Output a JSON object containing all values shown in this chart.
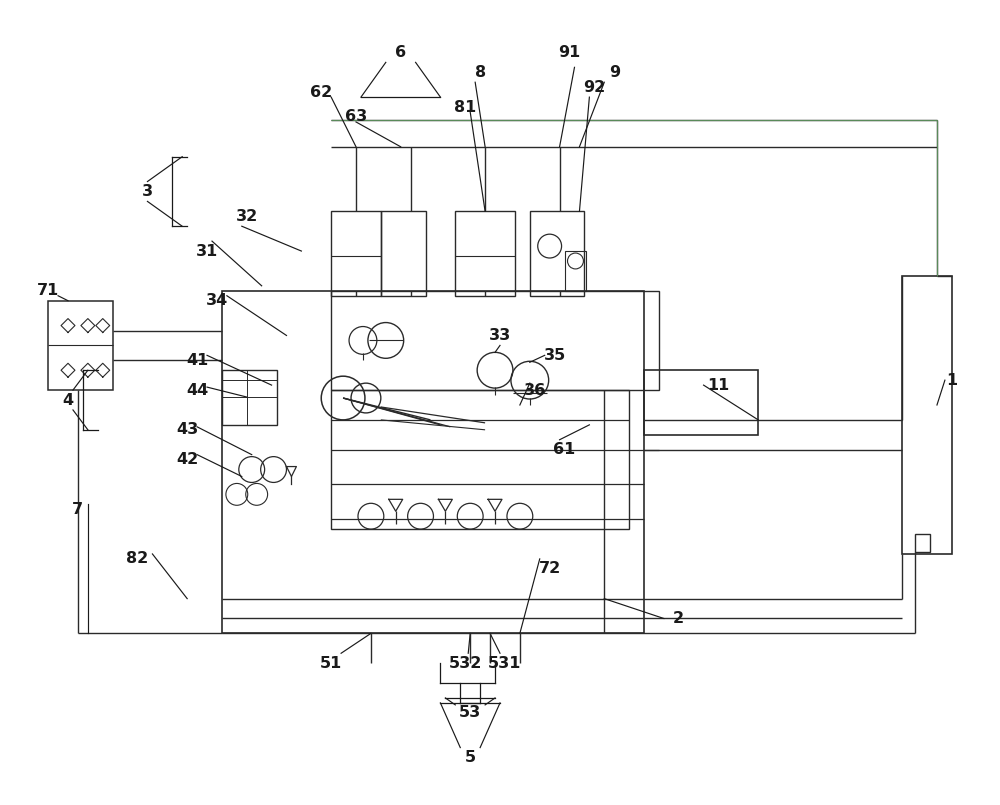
{
  "background": "#ffffff",
  "line_color": "#2a2a2a",
  "dark_line": "#1a1a1a",
  "green_line": "#5a8a5a",
  "label_color": "#1a1a1a",
  "label_fontsize": 11.5,
  "label_fontweight": "bold",
  "fig_width": 10.0,
  "fig_height": 8.05
}
